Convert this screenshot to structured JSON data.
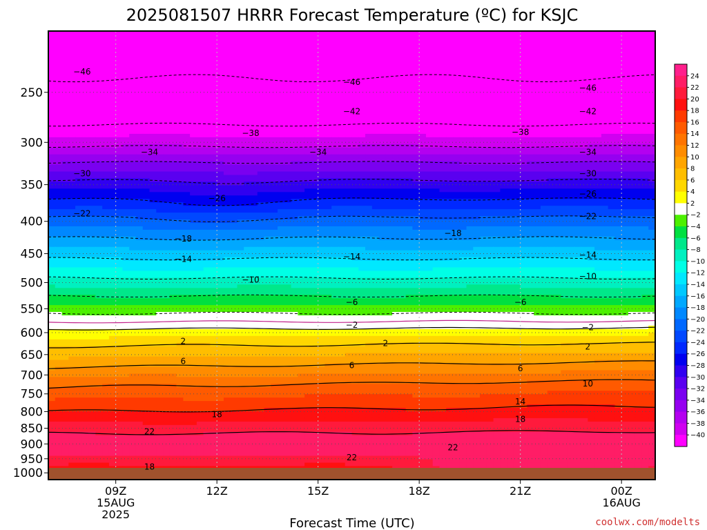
{
  "chart_data": {
    "type": "heatmap",
    "title": "2025081507 HRRR Forecast Temperature (ºC) for KSJC",
    "xlabel": "Forecast Time (UTC)",
    "ylabel": "",
    "x_hours": [
      7,
      8,
      9,
      10,
      11,
      12,
      13,
      14,
      15,
      16,
      17,
      18,
      19,
      20,
      21,
      22,
      23,
      24,
      25
    ],
    "xlim": [
      7,
      25
    ],
    "x_ticks": [
      {
        "hour": 9,
        "lines": [
          "09Z",
          "15AUG",
          "2025"
        ]
      },
      {
        "hour": 12,
        "lines": [
          "12Z"
        ]
      },
      {
        "hour": 15,
        "lines": [
          "15Z"
        ]
      },
      {
        "hour": 18,
        "lines": [
          "18Z"
        ]
      },
      {
        "hour": 21,
        "lines": [
          "21Z"
        ]
      },
      {
        "hour": 24,
        "lines": [
          "00Z",
          "16AUG"
        ]
      }
    ],
    "y_ticks": [
      "250",
      "300",
      "350",
      "400",
      "450",
      "500",
      "550",
      "600",
      "650",
      "700",
      "750",
      "800",
      "850",
      "900",
      "950",
      "1000"
    ],
    "ylim": [
      200,
      1025
    ],
    "y_scale": "log-pressure",
    "levels_hpa": [
      200,
      225,
      250,
      275,
      300,
      325,
      350,
      375,
      400,
      425,
      450,
      475,
      500,
      525,
      550,
      575,
      600,
      625,
      650,
      675,
      700,
      725,
      750,
      775,
      800,
      825,
      850,
      875,
      900,
      925,
      950,
      975,
      1000,
      1013
    ],
    "base_profile_c": [
      -49,
      -47,
      -45,
      -43,
      -39,
      -33.5,
      -29,
      -25,
      -21,
      -18,
      -15,
      -12,
      -9,
      -6,
      -3,
      -0.3,
      3,
      5.5,
      7.5,
      9.5,
      11.5,
      13.5,
      15,
      16.5,
      18,
      19.5,
      21,
      22.5,
      23.5,
      23,
      21,
      20,
      19,
      18.5
    ],
    "colorbar": {
      "ticks": [
        24,
        22,
        20,
        18,
        16,
        14,
        12,
        10,
        8,
        6,
        4,
        2,
        -2,
        -4,
        -6,
        -8,
        -10,
        -12,
        -14,
        -16,
        -18,
        -20,
        -22,
        -24,
        -26,
        -28,
        -30,
        -32,
        -34,
        -36,
        -38,
        -40
      ],
      "bins": [
        {
          "min": 24,
          "max": 99,
          "color": "#ff1f8c"
        },
        {
          "min": 22,
          "max": 24,
          "color": "#ff1d66"
        },
        {
          "min": 20,
          "max": 22,
          "color": "#ff1a3c"
        },
        {
          "min": 18,
          "max": 20,
          "color": "#ff1010"
        },
        {
          "min": 16,
          "max": 18,
          "color": "#ff3a00"
        },
        {
          "min": 14,
          "max": 16,
          "color": "#ff5a00"
        },
        {
          "min": 12,
          "max": 14,
          "color": "#ff7400"
        },
        {
          "min": 10,
          "max": 12,
          "color": "#ff8c00"
        },
        {
          "min": 8,
          "max": 10,
          "color": "#ffa500"
        },
        {
          "min": 6,
          "max": 8,
          "color": "#ffbe00"
        },
        {
          "min": 4,
          "max": 6,
          "color": "#ffd700"
        },
        {
          "min": 2,
          "max": 4,
          "color": "#ffff00"
        },
        {
          "min": -2,
          "max": 2,
          "color": "#ffffff"
        },
        {
          "min": -4,
          "max": -2,
          "color": "#4cf000"
        },
        {
          "min": -6,
          "max": -4,
          "color": "#00e040"
        },
        {
          "min": -8,
          "max": -6,
          "color": "#00e88a"
        },
        {
          "min": -10,
          "max": -8,
          "color": "#00f0c0"
        },
        {
          "min": -12,
          "max": -10,
          "color": "#00ffe6"
        },
        {
          "min": -14,
          "max": -12,
          "color": "#00e8ff"
        },
        {
          "min": -16,
          "max": -14,
          "color": "#00c8ff"
        },
        {
          "min": -18,
          "max": -16,
          "color": "#00a8ff"
        },
        {
          "min": -20,
          "max": -18,
          "color": "#0088ff"
        },
        {
          "min": -22,
          "max": -20,
          "color": "#0068ff"
        },
        {
          "min": -24,
          "max": -22,
          "color": "#0048ff"
        },
        {
          "min": -26,
          "max": -24,
          "color": "#0028ff"
        },
        {
          "min": -28,
          "max": -26,
          "color": "#0000f0"
        },
        {
          "min": -30,
          "max": -28,
          "color": "#3000f0"
        },
        {
          "min": -32,
          "max": -30,
          "color": "#5a00f0"
        },
        {
          "min": -34,
          "max": -32,
          "color": "#7a00f0"
        },
        {
          "min": -36,
          "max": -34,
          "color": "#9600f0"
        },
        {
          "min": -38,
          "max": -36,
          "color": "#b400f0"
        },
        {
          "min": -40,
          "max": -38,
          "color": "#d000f0"
        },
        {
          "min": -99,
          "max": -40,
          "color": "#ff00ff"
        }
      ]
    },
    "contour_levels": [
      -46,
      -42,
      -38,
      -34,
      -30,
      -26,
      -22,
      -18,
      -14,
      -10,
      -6,
      -2,
      2,
      6,
      10,
      14,
      18,
      22
    ],
    "contour_labels": [
      {
        "value": "-46",
        "hour": 8.0,
        "hpa": 232
      },
      {
        "value": "-46",
        "hour": 16.0,
        "hpa": 241
      },
      {
        "value": "-46",
        "hour": 23.0,
        "hpa": 246
      },
      {
        "value": "-42",
        "hour": 16.0,
        "hpa": 268
      },
      {
        "value": "-42",
        "hour": 23.0,
        "hpa": 268
      },
      {
        "value": "-38",
        "hour": 13.0,
        "hpa": 290
      },
      {
        "value": "-38",
        "hour": 21.0,
        "hpa": 289
      },
      {
        "value": "-34",
        "hour": 10.0,
        "hpa": 311
      },
      {
        "value": "-34",
        "hour": 15.0,
        "hpa": 311
      },
      {
        "value": "-34",
        "hour": 23.0,
        "hpa": 311
      },
      {
        "value": "-30",
        "hour": 8.0,
        "hpa": 336
      },
      {
        "value": "-30",
        "hour": 23.0,
        "hpa": 336
      },
      {
        "value": "-26",
        "hour": 12.0,
        "hpa": 368
      },
      {
        "value": "-26",
        "hour": 23.0,
        "hpa": 362
      },
      {
        "value": "-22",
        "hour": 8.0,
        "hpa": 389
      },
      {
        "value": "-22",
        "hour": 23.0,
        "hpa": 393
      },
      {
        "value": "-18",
        "hour": 11.0,
        "hpa": 426
      },
      {
        "value": "-18",
        "hour": 19.0,
        "hpa": 418
      },
      {
        "value": "-14",
        "hour": 11.0,
        "hpa": 459
      },
      {
        "value": "-14",
        "hour": 16.0,
        "hpa": 455
      },
      {
        "value": "-14",
        "hour": 23.0,
        "hpa": 452
      },
      {
        "value": "-10",
        "hour": 13.0,
        "hpa": 495
      },
      {
        "value": "-10",
        "hour": 23.0,
        "hpa": 489
      },
      {
        "value": "-6",
        "hour": 16.0,
        "hpa": 537
      },
      {
        "value": "-6",
        "hour": 21.0,
        "hpa": 537
      },
      {
        "value": "-2",
        "hour": 16.0,
        "hpa": 584
      },
      {
        "value": "-2",
        "hour": 23.0,
        "hpa": 589
      },
      {
        "value": "2",
        "hour": 11.0,
        "hpa": 619
      },
      {
        "value": "2",
        "hour": 17.0,
        "hpa": 624
      },
      {
        "value": "2",
        "hour": 23.0,
        "hpa": 632
      },
      {
        "value": "6",
        "hour": 11.0,
        "hpa": 666
      },
      {
        "value": "6",
        "hour": 16.0,
        "hpa": 676
      },
      {
        "value": "6",
        "hour": 21.0,
        "hpa": 684
      },
      {
        "value": "10",
        "hour": 23.0,
        "hpa": 723
      },
      {
        "value": "14",
        "hour": 21.0,
        "hpa": 772
      },
      {
        "value": "18",
        "hour": 12.0,
        "hpa": 808
      },
      {
        "value": "18",
        "hour": 21.0,
        "hpa": 823
      },
      {
        "value": "22",
        "hour": 10.0,
        "hpa": 861
      },
      {
        "value": "22",
        "hour": 16.0,
        "hpa": 946
      },
      {
        "value": "22",
        "hour": 19.0,
        "hpa": 912
      },
      {
        "value": "18",
        "hour": 10.0,
        "hpa": 978
      }
    ],
    "credit": "coolwx.com/modelts"
  }
}
